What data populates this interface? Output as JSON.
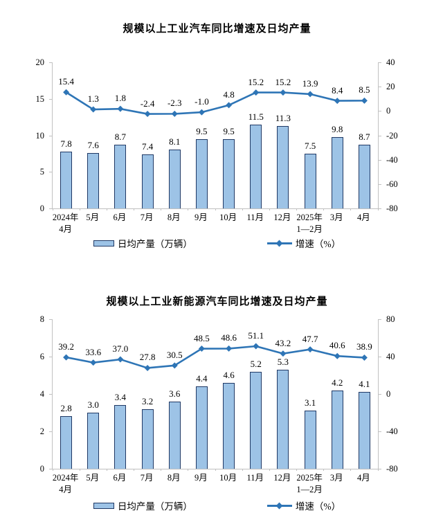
{
  "page": {
    "background": "#ffffff"
  },
  "colors": {
    "bar_fill": "#9DC3E6",
    "bar_border": "#1F3864",
    "line": "#2E75B6",
    "axis": "#C0C0C0",
    "text": "#000000"
  },
  "chart_data": [
    {
      "type": "combo",
      "title": "规模以上工业汽车同比增速及日均产量",
      "categories": [
        [
          "2024年",
          "4月"
        ],
        [
          "5月"
        ],
        [
          "6月"
        ],
        [
          "7月"
        ],
        [
          "8月"
        ],
        [
          "9月"
        ],
        [
          "10月"
        ],
        [
          "11月"
        ],
        [
          "12月"
        ],
        [
          "2025年",
          "1—2月"
        ],
        [
          "3月"
        ],
        [
          "4月"
        ]
      ],
      "series": [
        {
          "name": "日均产量（万辆）",
          "type": "bar",
          "axis": "left",
          "values": [
            7.8,
            7.6,
            8.7,
            7.4,
            8.1,
            9.5,
            9.5,
            11.5,
            11.3,
            7.5,
            9.8,
            8.7
          ]
        },
        {
          "name": "增速（%）",
          "type": "line",
          "axis": "right",
          "values": [
            15.4,
            1.3,
            1.8,
            -2.4,
            -2.3,
            -1.0,
            4.8,
            15.2,
            15.2,
            13.9,
            8.4,
            8.5
          ]
        }
      ],
      "left_axis": {
        "min": 0,
        "max": 20,
        "ticks": [
          0,
          5,
          10,
          15,
          20
        ]
      },
      "right_axis": {
        "min": -80,
        "max": 40,
        "ticks": [
          -80,
          -60,
          -40,
          -20,
          0,
          20,
          40
        ]
      },
      "grid": false,
      "legend_position": "bottom"
    },
    {
      "type": "combo",
      "title": "规模以上工业新能源汽车同比增速及日均产量",
      "categories": [
        [
          "2024年",
          "4月"
        ],
        [
          "5月"
        ],
        [
          "6月"
        ],
        [
          "7月"
        ],
        [
          "8月"
        ],
        [
          "9月"
        ],
        [
          "10月"
        ],
        [
          "11月"
        ],
        [
          "12月"
        ],
        [
          "2025年",
          "1—2月"
        ],
        [
          "3月"
        ],
        [
          "4月"
        ]
      ],
      "series": [
        {
          "name": "日均产量（万辆）",
          "type": "bar",
          "axis": "left",
          "values": [
            2.8,
            3.0,
            3.4,
            3.2,
            3.6,
            4.4,
            4.6,
            5.2,
            5.3,
            3.1,
            4.2,
            4.1
          ]
        },
        {
          "name": "增速（%）",
          "type": "line",
          "axis": "right",
          "values": [
            39.2,
            33.6,
            37.0,
            27.8,
            30.5,
            48.5,
            48.6,
            51.1,
            43.2,
            47.7,
            40.6,
            38.9
          ]
        }
      ],
      "left_axis": {
        "min": 0,
        "max": 8,
        "ticks": [
          0,
          2,
          4,
          6,
          8
        ]
      },
      "right_axis": {
        "min": -80,
        "max": 80,
        "ticks": [
          -80,
          -40,
          0,
          40,
          80
        ]
      },
      "grid": false,
      "legend_position": "bottom"
    }
  ]
}
